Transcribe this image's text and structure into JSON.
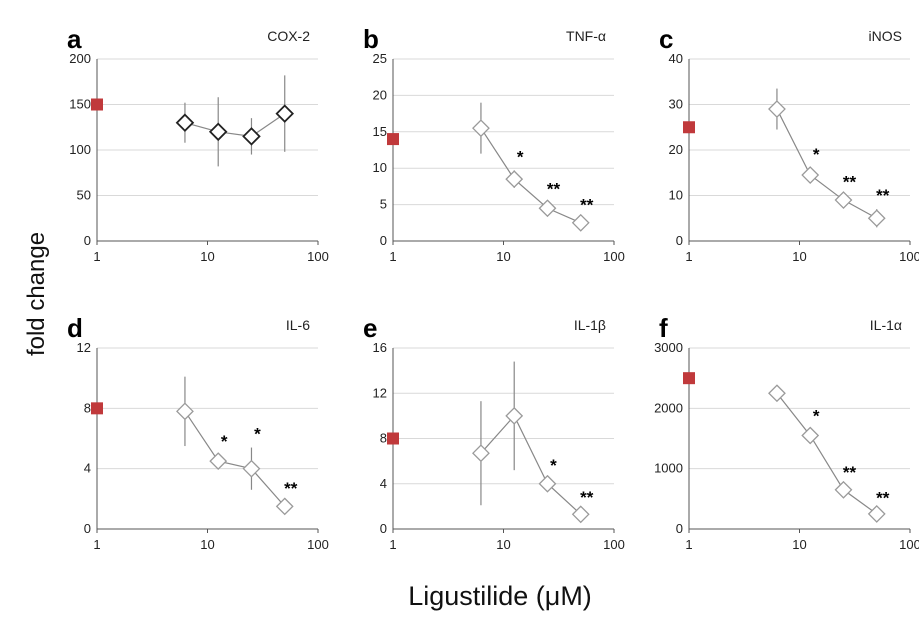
{
  "figure": {
    "y_label": "fold change",
    "x_label": "Ligustilide (μM)"
  },
  "chart_data": [
    {
      "type": "line",
      "panel": "a",
      "title": "COX-2",
      "xscale": "log",
      "xlim": [
        1,
        100
      ],
      "xticks": [
        "1",
        "10",
        "100"
      ],
      "ylim": [
        0,
        200
      ],
      "yticks": [
        0,
        50,
        100,
        150,
        200
      ],
      "control": {
        "x": 1,
        "y": 150
      },
      "series": [
        {
          "x": [
            6.25,
            12.5,
            25,
            50
          ],
          "y": [
            130,
            120,
            115,
            140
          ],
          "err": [
            22,
            38,
            20,
            42
          ],
          "sig": [
            "",
            "",
            "",
            ""
          ]
        }
      ],
      "marker": "diamond-dark",
      "grid": true
    },
    {
      "type": "line",
      "panel": "b",
      "title": "TNF-α",
      "xscale": "log",
      "xlim": [
        1,
        100
      ],
      "xticks": [
        "1",
        "10",
        "100"
      ],
      "ylim": [
        0,
        25
      ],
      "yticks": [
        0,
        5,
        10,
        15,
        20,
        25
      ],
      "control": {
        "x": 1,
        "y": 14
      },
      "series": [
        {
          "x": [
            6.25,
            12.5,
            25,
            50
          ],
          "y": [
            15.5,
            8.5,
            4.5,
            2.5
          ],
          "err": [
            3.5,
            1.2,
            0.8,
            0.6
          ],
          "sig": [
            "",
            "*",
            "**",
            "**"
          ]
        }
      ],
      "marker": "diamond-open",
      "grid": true
    },
    {
      "type": "line",
      "panel": "c",
      "title": "iNOS",
      "xscale": "log",
      "xlim": [
        1,
        100
      ],
      "xticks": [
        "1",
        "10",
        "100"
      ],
      "ylim": [
        0,
        40
      ],
      "yticks": [
        0,
        10,
        20,
        30,
        40
      ],
      "control": {
        "x": 1,
        "y": 25
      },
      "series": [
        {
          "x": [
            6.25,
            12.5,
            25,
            50
          ],
          "y": [
            29,
            14.5,
            9,
            5
          ],
          "err": [
            4.5,
            1.5,
            1,
            2
          ],
          "sig": [
            "",
            "*",
            "**",
            "**"
          ]
        }
      ],
      "marker": "diamond-open",
      "grid": true
    },
    {
      "type": "line",
      "panel": "d",
      "title": "IL-6",
      "xscale": "log",
      "xlim": [
        1,
        100
      ],
      "xticks": [
        "1",
        "10",
        "100"
      ],
      "ylim": [
        0,
        12
      ],
      "yticks": [
        0,
        4,
        8,
        12
      ],
      "control": {
        "x": 1,
        "y": 8
      },
      "series": [
        {
          "x": [
            6.25,
            12.5,
            25,
            50
          ],
          "y": [
            7.8,
            4.5,
            4,
            1.5
          ],
          "err": [
            2.3,
            0.4,
            1.4,
            0.3
          ],
          "sig": [
            "",
            "*",
            "*",
            "**"
          ]
        }
      ],
      "marker": "diamond-open",
      "grid": true
    },
    {
      "type": "line",
      "panel": "e",
      "title": "IL-1β",
      "xscale": "log",
      "xlim": [
        1,
        100
      ],
      "xticks": [
        "1",
        "10",
        "100"
      ],
      "ylim": [
        0,
        16
      ],
      "yticks": [
        0,
        4,
        8,
        12,
        16
      ],
      "control": {
        "x": 1,
        "y": 8
      },
      "series": [
        {
          "x": [
            6.25,
            12.5,
            25,
            50
          ],
          "y": [
            6.7,
            10,
            4,
            1.3
          ],
          "err": [
            4.6,
            4.8,
            0.4,
            0.3
          ],
          "sig": [
            "",
            "",
            "*",
            "**"
          ]
        }
      ],
      "marker": "diamond-open",
      "grid": true
    },
    {
      "type": "line",
      "panel": "f",
      "title": "IL-1α",
      "xscale": "log",
      "xlim": [
        1,
        100
      ],
      "xticks": [
        "1",
        "10",
        "100"
      ],
      "ylim": [
        0,
        3000
      ],
      "yticks": [
        0,
        1000,
        2000,
        3000
      ],
      "control": {
        "x": 1,
        "y": 2500
      },
      "series": [
        {
          "x": [
            6.25,
            12.5,
            25,
            50
          ],
          "y": [
            2250,
            1550,
            650,
            250
          ],
          "err": [
            60,
            100,
            60,
            40
          ],
          "sig": [
            "",
            "*",
            "**",
            "**"
          ]
        }
      ],
      "marker": "diamond-open",
      "grid": true
    }
  ],
  "colors": {
    "control": "#c0393b",
    "line": "#888888",
    "marker_dark": "#222222",
    "marker_open": "#9a9a9a",
    "grid": "#d9d9d9",
    "axis": "#555555"
  }
}
